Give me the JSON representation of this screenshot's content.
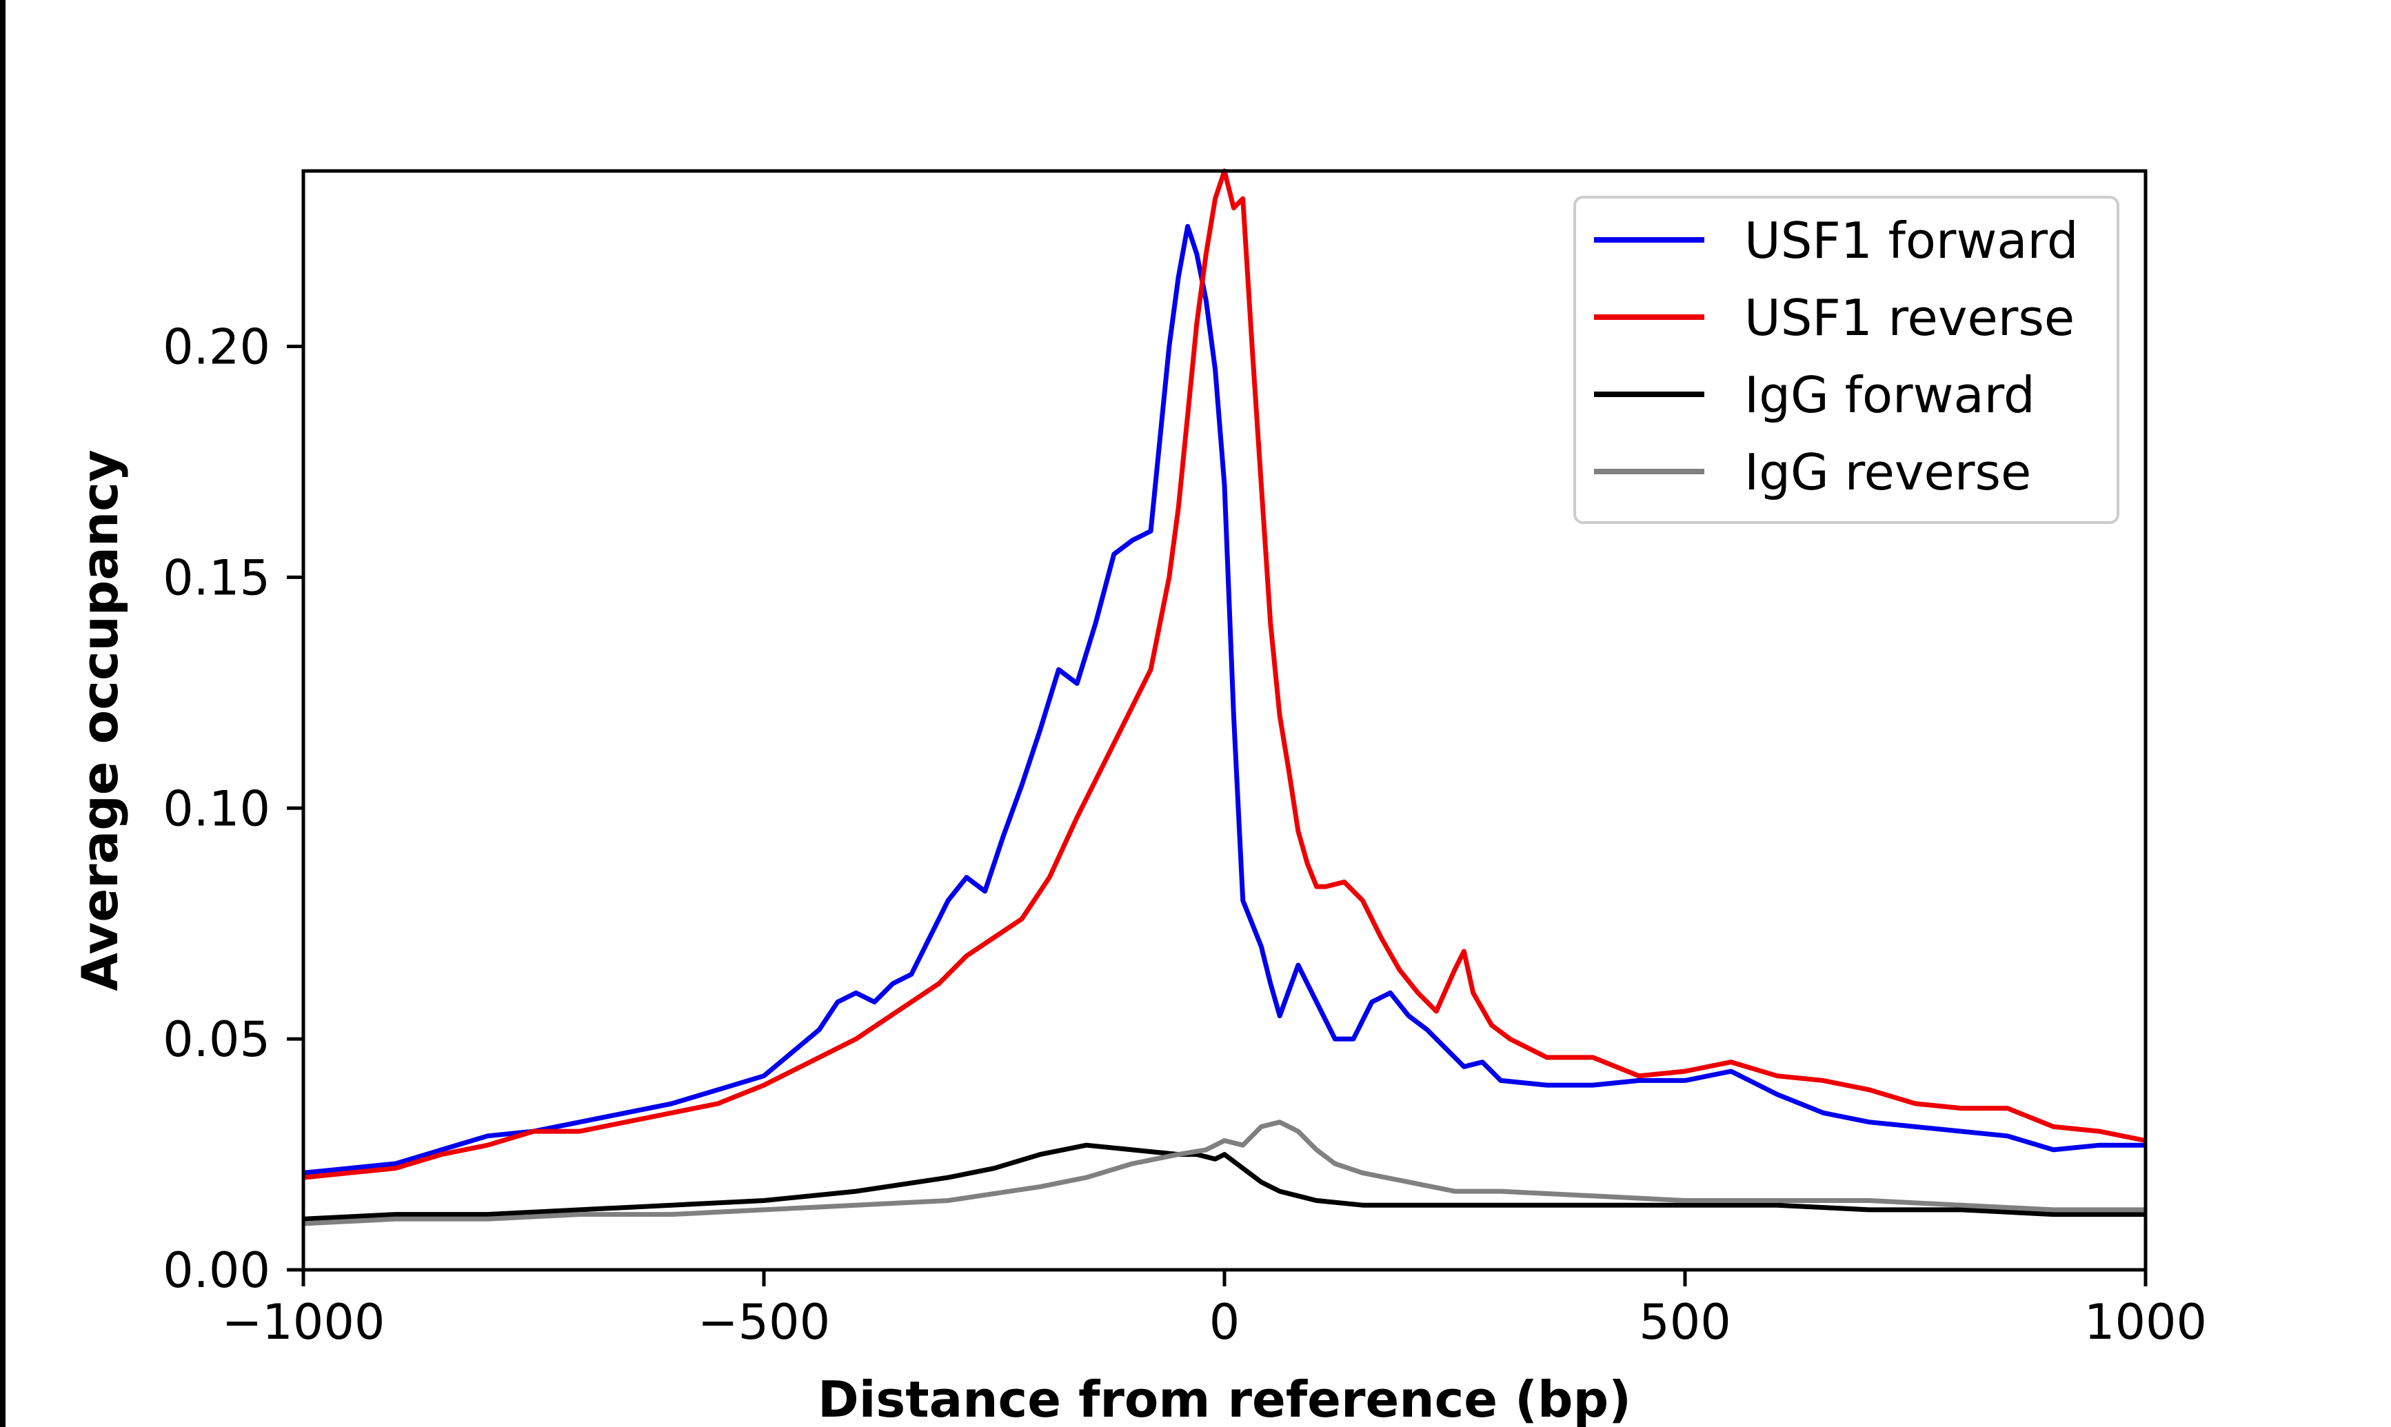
{
  "chart_data": {
    "type": "line",
    "title": "",
    "xlabel": "Distance from reference (bp)",
    "ylabel": "Average occupancy",
    "xlim": [
      -1000,
      1000
    ],
    "ylim": [
      0,
      0.238
    ],
    "xticks": [
      -1000,
      -500,
      0,
      500,
      1000
    ],
    "xtick_labels": [
      "−1000",
      "−500",
      "0",
      "500",
      "1000"
    ],
    "yticks": [
      0,
      0.05,
      0.1,
      0.15,
      0.2
    ],
    "ytick_labels": [
      "0.00",
      "0.05",
      "0.10",
      "0.15",
      "0.20"
    ],
    "grid": false,
    "legend_position": "top-right",
    "series": [
      {
        "name": "USF1 forward",
        "color": "#0000ee",
        "x": [
          -1000,
          -950,
          -900,
          -850,
          -800,
          -750,
          -700,
          -650,
          -600,
          -550,
          -500,
          -470,
          -440,
          -420,
          -400,
          -380,
          -360,
          -340,
          -320,
          -300,
          -280,
          -260,
          -240,
          -220,
          -200,
          -180,
          -160,
          -140,
          -120,
          -100,
          -80,
          -60,
          -50,
          -40,
          -30,
          -20,
          -10,
          0,
          10,
          20,
          30,
          40,
          50,
          60,
          80,
          100,
          120,
          140,
          160,
          180,
          200,
          220,
          240,
          260,
          280,
          300,
          350,
          400,
          450,
          500,
          550,
          600,
          650,
          700,
          750,
          800,
          850,
          900,
          950,
          1000
        ],
        "y": [
          0.021,
          0.022,
          0.023,
          0.026,
          0.029,
          0.03,
          0.032,
          0.034,
          0.036,
          0.039,
          0.042,
          0.047,
          0.052,
          0.058,
          0.06,
          0.058,
          0.062,
          0.064,
          0.072,
          0.08,
          0.085,
          0.082,
          0.094,
          0.105,
          0.117,
          0.13,
          0.127,
          0.14,
          0.155,
          0.158,
          0.16,
          0.2,
          0.215,
          0.226,
          0.22,
          0.21,
          0.195,
          0.17,
          0.12,
          0.08,
          0.075,
          0.07,
          0.062,
          0.055,
          0.066,
          0.058,
          0.05,
          0.05,
          0.058,
          0.06,
          0.055,
          0.052,
          0.048,
          0.044,
          0.045,
          0.041,
          0.04,
          0.04,
          0.041,
          0.041,
          0.043,
          0.038,
          0.034,
          0.032,
          0.031,
          0.03,
          0.029,
          0.026,
          0.027,
          0.027
        ]
      },
      {
        "name": "USF1 reverse",
        "color": "#ee0000",
        "x": [
          -1000,
          -950,
          -900,
          -850,
          -800,
          -750,
          -700,
          -650,
          -600,
          -550,
          -500,
          -450,
          -400,
          -370,
          -340,
          -310,
          -280,
          -250,
          -220,
          -190,
          -160,
          -130,
          -100,
          -80,
          -60,
          -50,
          -40,
          -30,
          -20,
          -10,
          0,
          10,
          20,
          30,
          40,
          50,
          60,
          70,
          80,
          90,
          100,
          110,
          130,
          150,
          170,
          190,
          210,
          230,
          250,
          260,
          270,
          290,
          310,
          350,
          400,
          450,
          500,
          550,
          600,
          650,
          700,
          750,
          800,
          850,
          900,
          950,
          1000
        ],
        "y": [
          0.02,
          0.021,
          0.022,
          0.025,
          0.027,
          0.03,
          0.03,
          0.032,
          0.034,
          0.036,
          0.04,
          0.045,
          0.05,
          0.054,
          0.058,
          0.062,
          0.068,
          0.072,
          0.076,
          0.085,
          0.098,
          0.11,
          0.122,
          0.13,
          0.15,
          0.165,
          0.185,
          0.205,
          0.22,
          0.232,
          0.238,
          0.23,
          0.232,
          0.2,
          0.17,
          0.14,
          0.12,
          0.108,
          0.095,
          0.088,
          0.083,
          0.083,
          0.084,
          0.08,
          0.072,
          0.065,
          0.06,
          0.056,
          0.065,
          0.069,
          0.06,
          0.053,
          0.05,
          0.046,
          0.046,
          0.042,
          0.043,
          0.045,
          0.042,
          0.041,
          0.039,
          0.036,
          0.035,
          0.035,
          0.031,
          0.03,
          0.028
        ]
      },
      {
        "name": "IgG forward",
        "color": "#000000",
        "x": [
          -1000,
          -900,
          -800,
          -700,
          -600,
          -500,
          -400,
          -300,
          -250,
          -200,
          -150,
          -100,
          -50,
          -30,
          -10,
          0,
          20,
          40,
          60,
          80,
          100,
          150,
          200,
          300,
          400,
          500,
          600,
          700,
          800,
          900,
          1000
        ],
        "y": [
          0.011,
          0.012,
          0.012,
          0.013,
          0.014,
          0.015,
          0.017,
          0.02,
          0.022,
          0.025,
          0.027,
          0.026,
          0.025,
          0.025,
          0.024,
          0.025,
          0.022,
          0.019,
          0.017,
          0.016,
          0.015,
          0.014,
          0.014,
          0.014,
          0.014,
          0.014,
          0.014,
          0.013,
          0.013,
          0.012,
          0.012
        ]
      },
      {
        "name": "IgG reverse",
        "color": "#808080",
        "x": [
          -1000,
          -900,
          -800,
          -700,
          -600,
          -500,
          -400,
          -300,
          -200,
          -150,
          -100,
          -50,
          -20,
          0,
          20,
          40,
          60,
          80,
          100,
          120,
          150,
          200,
          250,
          300,
          400,
          500,
          600,
          700,
          800,
          900,
          1000
        ],
        "y": [
          0.01,
          0.011,
          0.011,
          0.012,
          0.012,
          0.013,
          0.014,
          0.015,
          0.018,
          0.02,
          0.023,
          0.025,
          0.026,
          0.028,
          0.027,
          0.031,
          0.032,
          0.03,
          0.026,
          0.023,
          0.021,
          0.019,
          0.017,
          0.017,
          0.016,
          0.015,
          0.015,
          0.015,
          0.014,
          0.013,
          0.013
        ]
      }
    ]
  }
}
